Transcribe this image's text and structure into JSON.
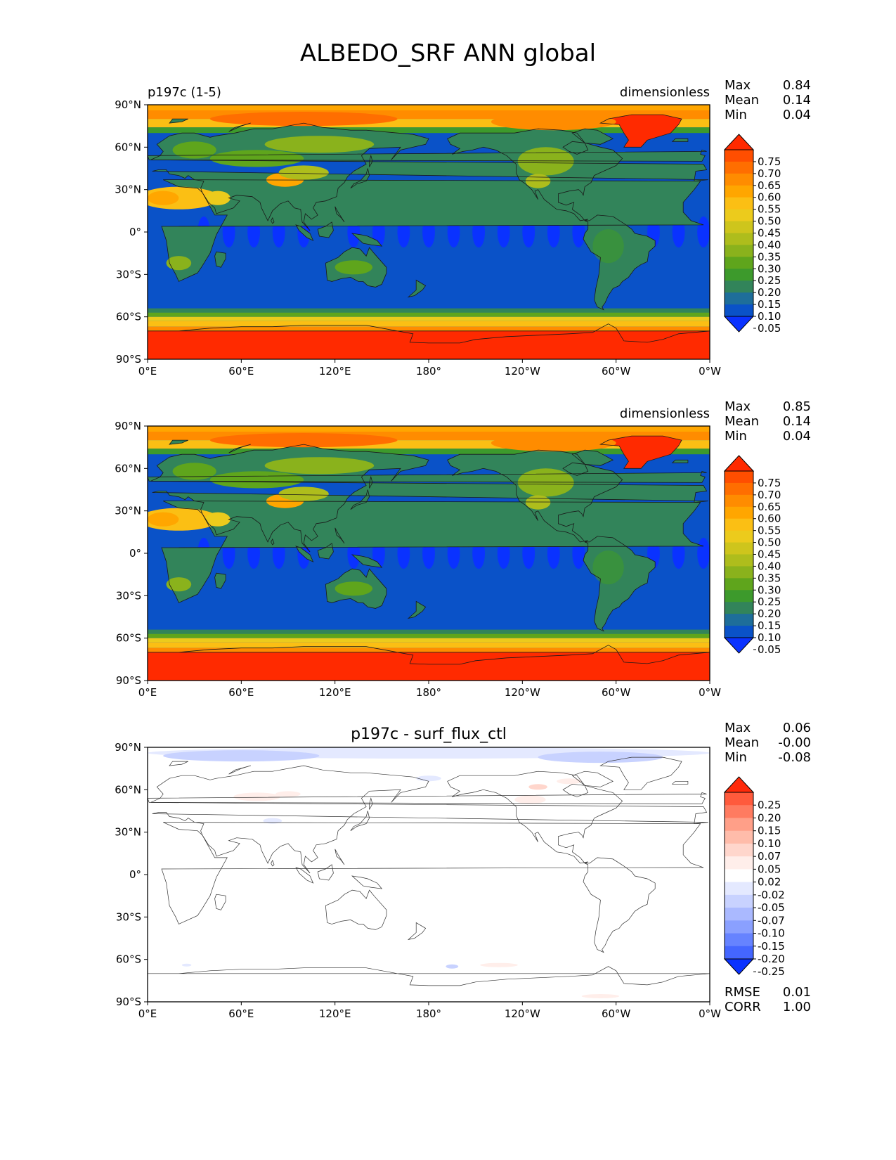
{
  "title": "ALBEDO_SRF ANN global",
  "panels": [
    {
      "left_title": "p197c (1-5)",
      "center_title": "",
      "units": "dimensionless",
      "stats": {
        "labels": [
          "Max",
          "Mean",
          "Min"
        ],
        "values": [
          "0.84",
          "0.14",
          "0.04"
        ]
      },
      "colorbar": {
        "levels": [
          "0.75",
          "0.70",
          "0.65",
          "0.60",
          "0.55",
          "0.50",
          "0.45",
          "0.40",
          "0.35",
          "0.30",
          "0.25",
          "0.20",
          "0.15",
          "0.10",
          "0.05"
        ],
        "colors": [
          "#ff2a00",
          "#ff4e00",
          "#ff6e00",
          "#ff8c00",
          "#ffa600",
          "#fbbf14",
          "#eccb1c",
          "#cec51c",
          "#aebd1c",
          "#8ab21c",
          "#5fa51c",
          "#3d9a2c",
          "#32845a",
          "#1e6e9a",
          "#0a52c8",
          "#0a32ff"
        ]
      },
      "extra_stats": null
    },
    {
      "left_title": "",
      "center_title": "",
      "units": "dimensionless",
      "stats": {
        "labels": [
          "Max",
          "Mean",
          "Min"
        ],
        "values": [
          "0.85",
          "0.14",
          "0.04"
        ]
      },
      "colorbar": {
        "levels": [
          "0.75",
          "0.70",
          "0.65",
          "0.60",
          "0.55",
          "0.50",
          "0.45",
          "0.40",
          "0.35",
          "0.30",
          "0.25",
          "0.20",
          "0.15",
          "0.10",
          "0.05"
        ],
        "colors": [
          "#ff2a00",
          "#ff4e00",
          "#ff6e00",
          "#ff8c00",
          "#ffa600",
          "#fbbf14",
          "#eccb1c",
          "#cec51c",
          "#aebd1c",
          "#8ab21c",
          "#5fa51c",
          "#3d9a2c",
          "#32845a",
          "#1e6e9a",
          "#0a52c8",
          "#0a32ff"
        ]
      },
      "extra_stats": null
    },
    {
      "left_title": "",
      "center_title": "p197c - surf_flux_ctl",
      "units": "",
      "stats": {
        "labels": [
          "Max",
          "Mean",
          "Min"
        ],
        "values": [
          "0.06",
          "-0.00",
          "-0.08"
        ]
      },
      "colorbar": {
        "levels": [
          "0.25",
          "0.20",
          "0.15",
          "0.10",
          "0.07",
          "0.05",
          "0.02",
          "-0.02",
          "-0.05",
          "-0.07",
          "-0.10",
          "-0.15",
          "-0.20",
          "-0.25"
        ],
        "colors": [
          "#ff2a0a",
          "#ff5a3c",
          "#ff7b60",
          "#ff9f88",
          "#ffbcaa",
          "#ffd6cc",
          "#ffeeea",
          "#ffffff",
          "#e4e9ff",
          "#c8d2ff",
          "#aab9ff",
          "#8aa0ff",
          "#6683ff",
          "#4466ff",
          "#0a32ff"
        ]
      },
      "extra_stats": {
        "labels": [
          "RMSE",
          "CORR"
        ],
        "values": [
          "0.01",
          "1.00"
        ]
      }
    }
  ],
  "axes": {
    "lat_ticks": [
      "90°N",
      "60°N",
      "30°N",
      "0°",
      "30°S",
      "60°S",
      "90°S"
    ],
    "lon_ticks": [
      "0°E",
      "60°E",
      "120°E",
      "180°",
      "120°W",
      "60°W",
      "0°W"
    ]
  },
  "colors": {
    "ocean": "#0a52c8",
    "ocean_low": "#0a32ff",
    "land": "#32845a",
    "land_green": "#5fa51c",
    "ice": "#ff2a00",
    "sea_ice": "#ff8c00",
    "coast": "#1a1a1a"
  }
}
